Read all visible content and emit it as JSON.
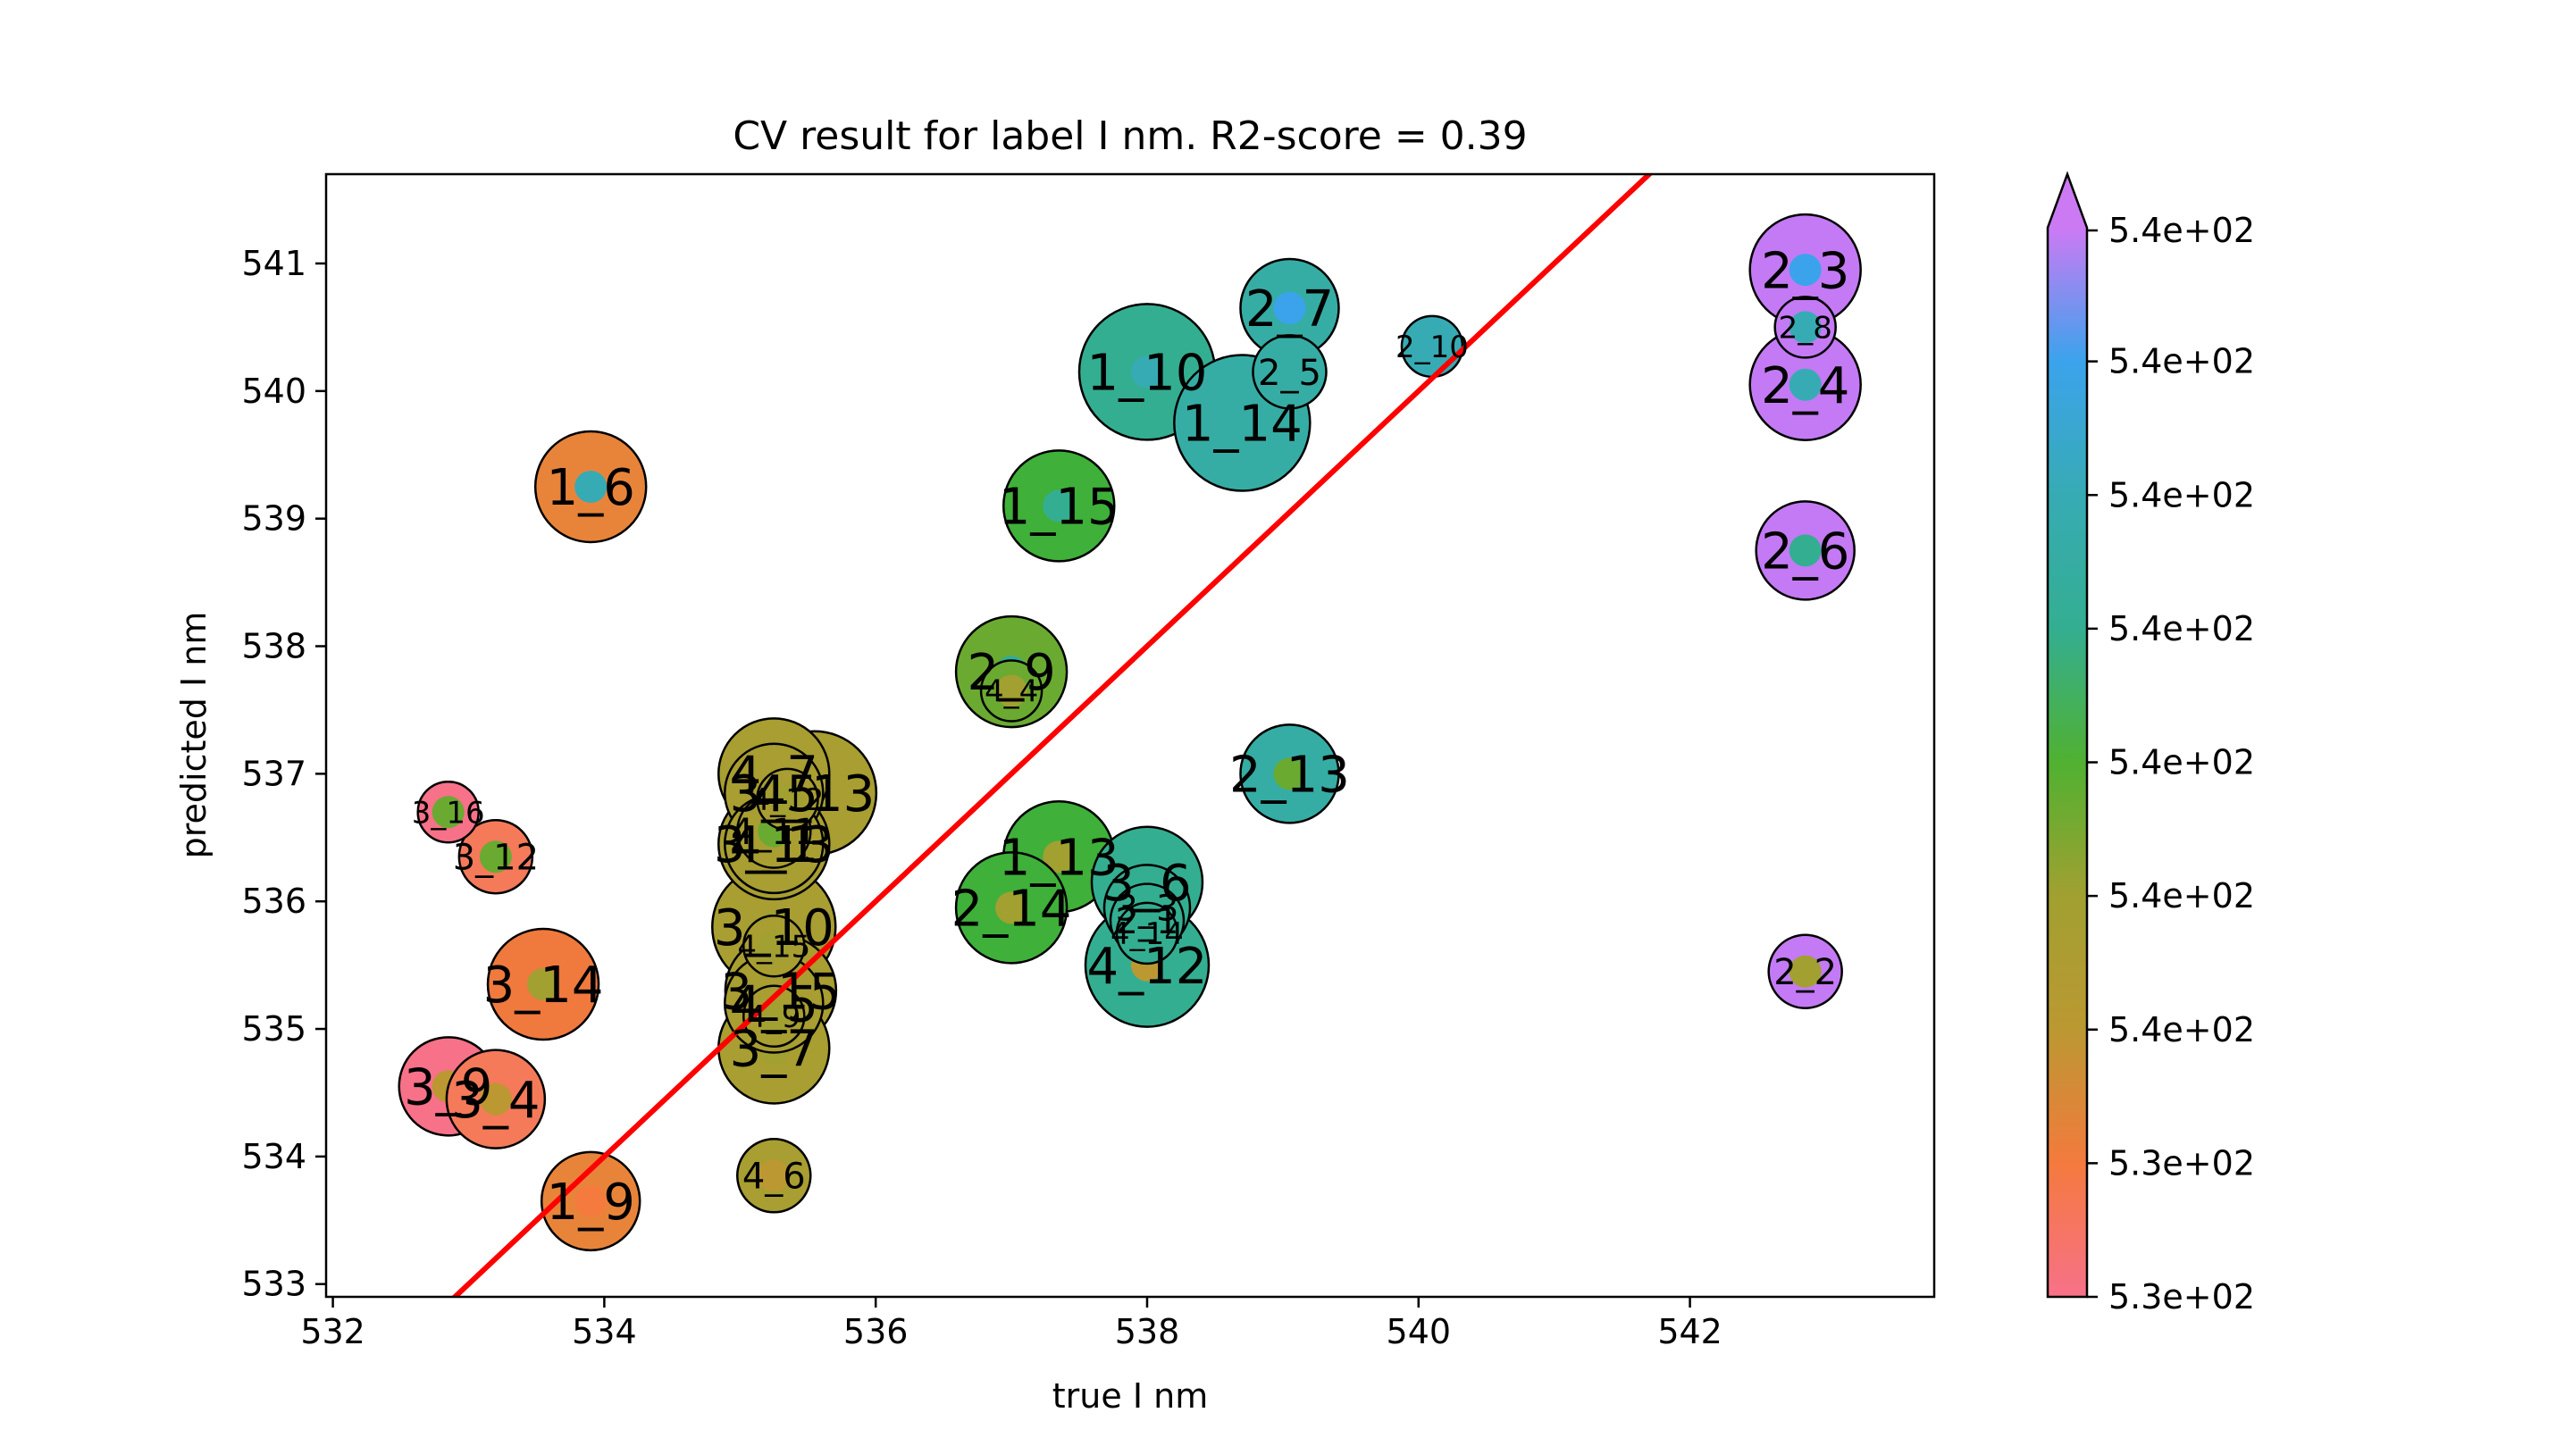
{
  "chart_data": {
    "type": "scatter",
    "title": "CV result for label I nm. R2-score = 0.39",
    "xlabel": "true I nm",
    "ylabel": "predicted I nm",
    "xlim": [
      531.95,
      543.8
    ],
    "ylim": [
      532.9,
      541.7
    ],
    "xticks": [
      "532",
      "534",
      "536",
      "538",
      "540",
      "542"
    ],
    "yticks": [
      "533",
      "534",
      "535",
      "536",
      "537",
      "538",
      "539",
      "540",
      "541"
    ],
    "grid": false,
    "reference_line": {
      "color": "#ff0000",
      "points": [
        [
          532.0,
          532.0
        ],
        [
          544.0,
          544.0
        ]
      ]
    },
    "colorbar": {
      "ticks": [
        "5.3e+02",
        "5.3e+02",
        "5.4e+02",
        "5.4e+02",
        "5.4e+02",
        "5.4e+02",
        "5.4e+02",
        "5.4e+02",
        "5.4e+02"
      ],
      "extend": "max",
      "colors": [
        "#f77189",
        "#f47a3e",
        "#bb9832",
        "#a1a031",
        "#50b131",
        "#34ae91",
        "#37abb4",
        "#3ba3ec",
        "#cc7af4"
      ]
    },
    "points": [
      {
        "label": "2_3",
        "x": 542.85,
        "y": 540.95,
        "size": 3,
        "color": "#c47af4",
        "inner": "#3ba3ec"
      },
      {
        "label": "2_8",
        "x": 542.85,
        "y": 540.5,
        "size": 1,
        "color": "#c47af4",
        "inner": "#37abb4"
      },
      {
        "label": "2_4",
        "x": 542.85,
        "y": 540.05,
        "size": 3,
        "color": "#c47af4",
        "inner": "#37abb4"
      },
      {
        "label": "2_6",
        "x": 542.85,
        "y": 538.75,
        "size": 2.5,
        "color": "#c47af4",
        "inner": "#34ae91"
      },
      {
        "label": "2_2",
        "x": 542.85,
        "y": 535.45,
        "size": 1.5,
        "color": "#c47af4",
        "inner": "#a1a031"
      },
      {
        "label": "2_7",
        "x": 539.05,
        "y": 540.65,
        "size": 2.5,
        "color": "#36ada4",
        "inner": "#3ba3ec"
      },
      {
        "label": "2_10",
        "x": 540.1,
        "y": 540.35,
        "size": 1,
        "color": "#37abb4",
        "inner": "#37abb4"
      },
      {
        "label": "2_5",
        "x": 539.05,
        "y": 540.15,
        "size": 1.5,
        "color": "#36ada4",
        "inner": "#36ada4"
      },
      {
        "label": "1_10",
        "x": 538.0,
        "y": 540.15,
        "size": 4,
        "color": "#34ae91",
        "inner": "#37abb4"
      },
      {
        "label": "1_14",
        "x": 538.7,
        "y": 539.75,
        "size": 4,
        "color": "#36ada4",
        "inner": "#36ada4"
      },
      {
        "label": "1_6",
        "x": 533.9,
        "y": 539.25,
        "size": 3,
        "color": "#e8843a",
        "inner": "#37abb4"
      },
      {
        "label": "1_15",
        "x": 537.35,
        "y": 539.1,
        "size": 3,
        "color": "#3fb039",
        "inner": "#34ae91"
      },
      {
        "label": "2_9",
        "x": 537.0,
        "y": 537.8,
        "size": 3,
        "color": "#6aaa31",
        "inner": "#34ae91"
      },
      {
        "label": "4_4",
        "x": 537.0,
        "y": 537.65,
        "size": 1,
        "color": "#6aaa31",
        "inner": "#a1a031"
      },
      {
        "label": "2_13",
        "x": 539.05,
        "y": 537.0,
        "size": 2.5,
        "color": "#36ada4",
        "inner": "#6aaa31"
      },
      {
        "label": "3_16",
        "x": 532.85,
        "y": 536.7,
        "size": 1,
        "color": "#f77189",
        "inner": "#6aaa31"
      },
      {
        "label": "3_12",
        "x": 533.2,
        "y": 536.35,
        "size": 1.5,
        "color": "#f47a5a",
        "inner": "#6aaa31"
      },
      {
        "label": "3_14",
        "x": 533.55,
        "y": 535.35,
        "size": 3,
        "color": "#f0793e",
        "inner": "#a1a031"
      },
      {
        "label": "3_9",
        "x": 532.85,
        "y": 534.55,
        "size": 2.5,
        "color": "#f77189",
        "inner": "#bb9832"
      },
      {
        "label": "3_4",
        "x": 533.2,
        "y": 534.45,
        "size": 2.5,
        "color": "#f47a5a",
        "inner": "#bb9832"
      },
      {
        "label": "1_9",
        "x": 533.9,
        "y": 533.65,
        "size": 2.5,
        "color": "#e8843a",
        "inner": "#f47a3e"
      },
      {
        "label": "4_7",
        "x": 535.25,
        "y": 537.0,
        "size": 3,
        "color": "#a89e31",
        "inner": "#bb9832"
      },
      {
        "label": "4_13",
        "x": 535.55,
        "y": 536.85,
        "size": 3.5,
        "color": "#a89e31",
        "inner": "#a1a031"
      },
      {
        "label": "3_5",
        "x": 535.25,
        "y": 536.85,
        "size": 2.5,
        "color": "#a89e31",
        "inner": "#a1a031"
      },
      {
        "label": "4_11",
        "x": 535.25,
        "y": 536.55,
        "size": 1.5,
        "color": "#a89e31",
        "inner": "#6aaa31"
      },
      {
        "label": "4_12",
        "x": 535.35,
        "y": 536.8,
        "size": 1,
        "color": "#a89e31",
        "inner": "#a1a031"
      },
      {
        "label": "4_1",
        "x": 535.25,
        "y": 536.45,
        "size": 2.5,
        "color": "#a89e31",
        "inner": "#a1a031"
      },
      {
        "label": "3_13",
        "x": 535.25,
        "y": 536.45,
        "size": 3,
        "color": "#a89e31",
        "inner": "#a1a031"
      },
      {
        "label": "3_10",
        "x": 535.25,
        "y": 535.8,
        "size": 3.5,
        "color": "#a89e31",
        "inner": "#a1a031"
      },
      {
        "label": "4_15",
        "x": 535.25,
        "y": 535.65,
        "size": 1,
        "color": "#a89e31",
        "inner": "#a1a031"
      },
      {
        "label": "3_15",
        "x": 535.3,
        "y": 535.3,
        "size": 3,
        "color": "#a89e31",
        "inner": "#a1a031"
      },
      {
        "label": "4_5",
        "x": 535.25,
        "y": 535.2,
        "size": 2.5,
        "color": "#a89e31",
        "inner": "#a1a031"
      },
      {
        "label": "4_9",
        "x": 535.25,
        "y": 535.1,
        "size": 1,
        "color": "#a89e31",
        "inner": "#a1a031"
      },
      {
        "label": "3_7",
        "x": 535.25,
        "y": 534.85,
        "size": 3,
        "color": "#a89e31",
        "inner": "#a1a031"
      },
      {
        "label": "4_6",
        "x": 535.25,
        "y": 533.85,
        "size": 1.5,
        "color": "#a89e31",
        "inner": "#bb9832"
      },
      {
        "label": "1_13",
        "x": 537.35,
        "y": 536.35,
        "size": 3,
        "color": "#3fb039",
        "inner": "#a1a031"
      },
      {
        "label": "2_14",
        "x": 537.0,
        "y": 535.95,
        "size": 3,
        "color": "#3fb039",
        "inner": "#a1a031"
      },
      {
        "label": "3_6",
        "x": 538.0,
        "y": 536.15,
        "size": 3,
        "color": "#34ae91",
        "inner": "#a1a031"
      },
      {
        "label": "3_3",
        "x": 538.0,
        "y": 535.95,
        "size": 2,
        "color": "#34ae91",
        "inner": "#34ae91"
      },
      {
        "label": "2_1",
        "x": 538.0,
        "y": 535.85,
        "size": 1.5,
        "color": "#34ae91",
        "inner": "#34ae91"
      },
      {
        "label": "4_14",
        "x": 538.0,
        "y": 535.75,
        "size": 1,
        "color": "#34ae91",
        "inner": "#34ae91"
      },
      {
        "label": "4_12",
        "x": 538.0,
        "y": 535.5,
        "size": 3.5,
        "color": "#34ae91",
        "inner": "#bb9832"
      }
    ]
  }
}
